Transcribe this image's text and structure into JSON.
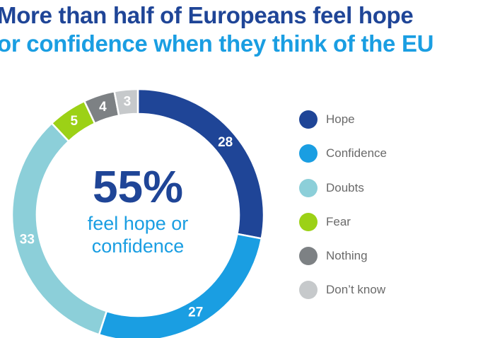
{
  "title": {
    "line1": "More than half of Europeans feel hope",
    "line2": "or confidence when they think of the EU"
  },
  "center": {
    "headline": "55%",
    "subtext_line1": "feel hope or",
    "subtext_line2": "confidence"
  },
  "chart_data": {
    "type": "pie",
    "subtype": "donut",
    "title": "More than half of Europeans feel hope or confidence when they think of the EU",
    "legend_position": "right",
    "categories": [
      "Hope",
      "Confidence",
      "Doubts",
      "Fear",
      "Nothing",
      "Don’t know"
    ],
    "values": [
      28,
      27,
      33,
      5,
      4,
      3
    ],
    "data_labels": [
      "28",
      "27",
      "33",
      "5",
      "4",
      "3"
    ],
    "colors": [
      "#1f4597",
      "#1a9ee2",
      "#8ccfd9",
      "#9cd116",
      "#7d8184",
      "#c6c9cb"
    ],
    "center_annotation": "55% feel hope or confidence"
  }
}
